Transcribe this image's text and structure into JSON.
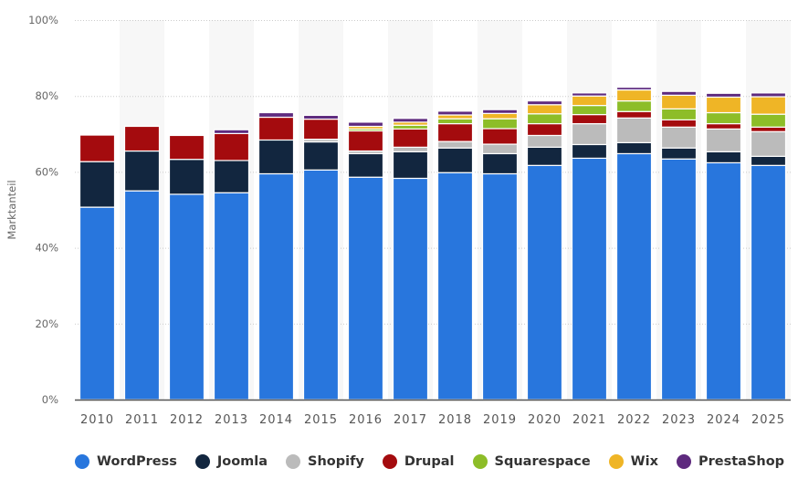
{
  "chart_data": {
    "type": "bar",
    "stacked": true,
    "title": "",
    "xlabel": "",
    "ylabel": "Marktanteil",
    "ylim": [
      0,
      100
    ],
    "yticks": [
      "0%",
      "20%",
      "40%",
      "60%",
      "80%",
      "100%"
    ],
    "ytick_values": [
      0,
      20,
      40,
      60,
      80,
      100
    ],
    "grid": true,
    "legend_position": "bottom-left",
    "categories": [
      "2010",
      "2011",
      "2012",
      "2013",
      "2014",
      "2015",
      "2016",
      "2017",
      "2018",
      "2019",
      "2020",
      "2021",
      "2022",
      "2023",
      "2024",
      "2025"
    ],
    "series": [
      {
        "name": "WordPress",
        "color": "#2876dd",
        "values": [
          50.7,
          55.0,
          54.1,
          54.5,
          59.5,
          60.5,
          58.6,
          58.3,
          59.8,
          59.5,
          61.7,
          63.6,
          64.8,
          63.4,
          62.4,
          61.7
        ]
      },
      {
        "name": "Joomla",
        "color": "#12263f",
        "values": [
          12.0,
          10.5,
          9.2,
          8.5,
          8.9,
          7.4,
          6.2,
          7.0,
          6.5,
          5.3,
          4.8,
          3.6,
          2.9,
          2.9,
          2.9,
          2.4
        ]
      },
      {
        "name": "Shopify",
        "color": "#bbbbbb",
        "values": [
          0,
          0,
          0,
          0,
          0,
          0.7,
          0.7,
          1.2,
          1.7,
          2.5,
          3.1,
          5.5,
          6.5,
          5.5,
          6.0,
          6.5
        ]
      },
      {
        "name": "Drupal",
        "color": "#a40b0e",
        "values": [
          7.0,
          6.5,
          6.3,
          7.1,
          6.0,
          5.3,
          5.3,
          4.8,
          4.7,
          4.1,
          3.1,
          2.4,
          1.7,
          1.9,
          1.4,
          1.2
        ]
      },
      {
        "name": "Squarespace",
        "color": "#8dbd28",
        "values": [
          0,
          0,
          0,
          0,
          0,
          0,
          0.5,
          1.0,
          1.3,
          2.6,
          2.6,
          2.4,
          2.8,
          2.9,
          2.9,
          3.4
        ]
      },
      {
        "name": "Wix",
        "color": "#efb526",
        "values": [
          0,
          0,
          0,
          0,
          0,
          0,
          0.7,
          0.8,
          1.0,
          1.4,
          2.4,
          2.5,
          2.9,
          3.6,
          4.1,
          4.6
        ]
      },
      {
        "name": "PrestaShop",
        "color": "#5e2a7e",
        "values": [
          0,
          0,
          0,
          1.0,
          1.2,
          1.0,
          1.1,
          1.0,
          1.0,
          1.0,
          1.0,
          0.8,
          0.7,
          1.0,
          1.0,
          1.0
        ]
      }
    ]
  }
}
